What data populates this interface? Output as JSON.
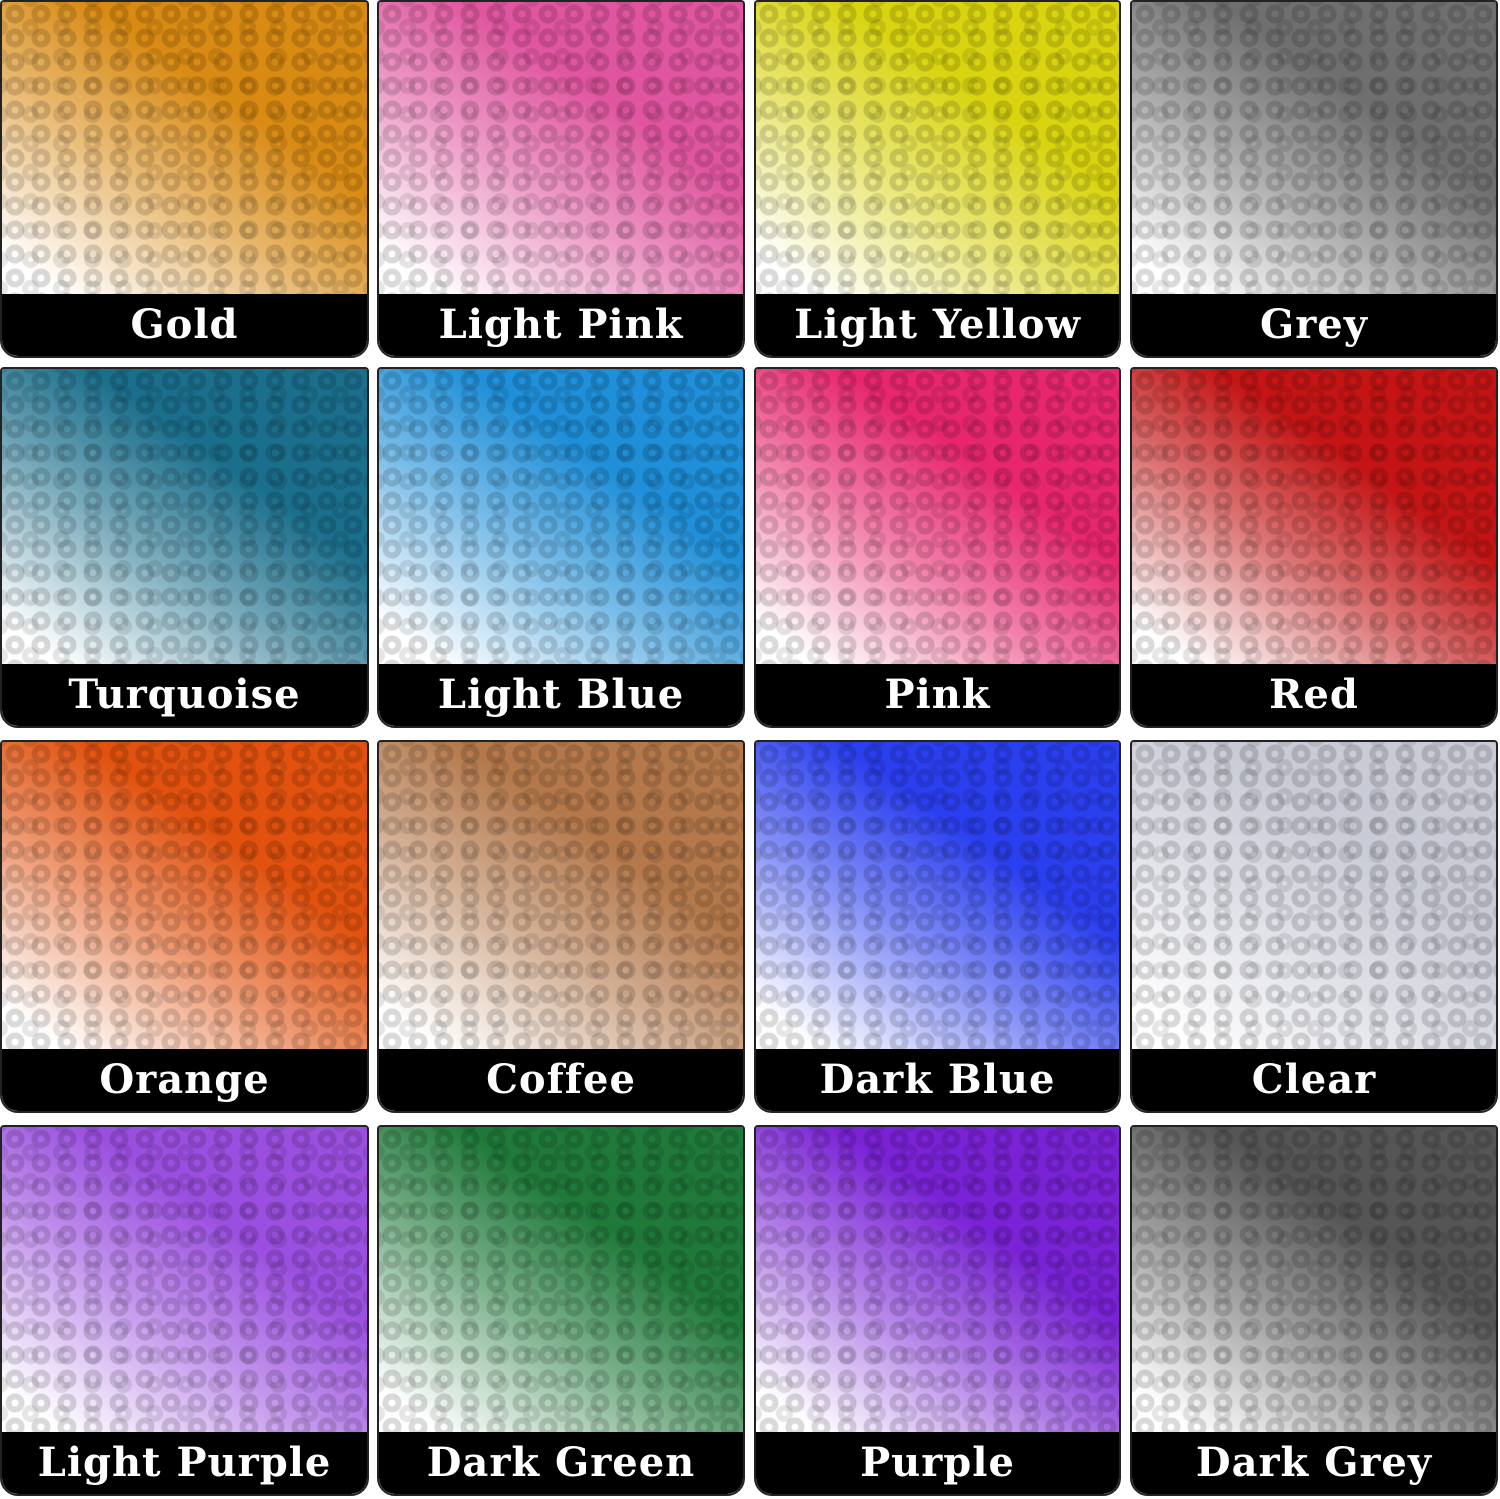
{
  "swatches": [
    {
      "label": "Gold",
      "color": "#d98a12"
    },
    {
      "label": "Light Pink",
      "color": "#e0559f"
    },
    {
      "label": "Light Yellow",
      "color": "#d9d40f"
    },
    {
      "label": "Grey",
      "color": "#6f6f6f"
    },
    {
      "label": "Turquoise",
      "color": "#1a6f8c"
    },
    {
      "label": "Light Blue",
      "color": "#1e8fd8"
    },
    {
      "label": "Pink",
      "color": "#e8266e"
    },
    {
      "label": "Red",
      "color": "#c41414"
    },
    {
      "label": "Orange",
      "color": "#e2520e"
    },
    {
      "label": "Coffee",
      "color": "#b4784a"
    },
    {
      "label": "Dark Blue",
      "color": "#2a3ff0"
    },
    {
      "label": "Clear",
      "color": "#c9cbd6"
    },
    {
      "label": "Light Purple",
      "color": "#9b4fe0"
    },
    {
      "label": "Dark Green",
      "color": "#1f7a3a"
    },
    {
      "label": "Purple",
      "color": "#7a22d6"
    },
    {
      "label": "Dark Grey",
      "color": "#555555"
    }
  ]
}
